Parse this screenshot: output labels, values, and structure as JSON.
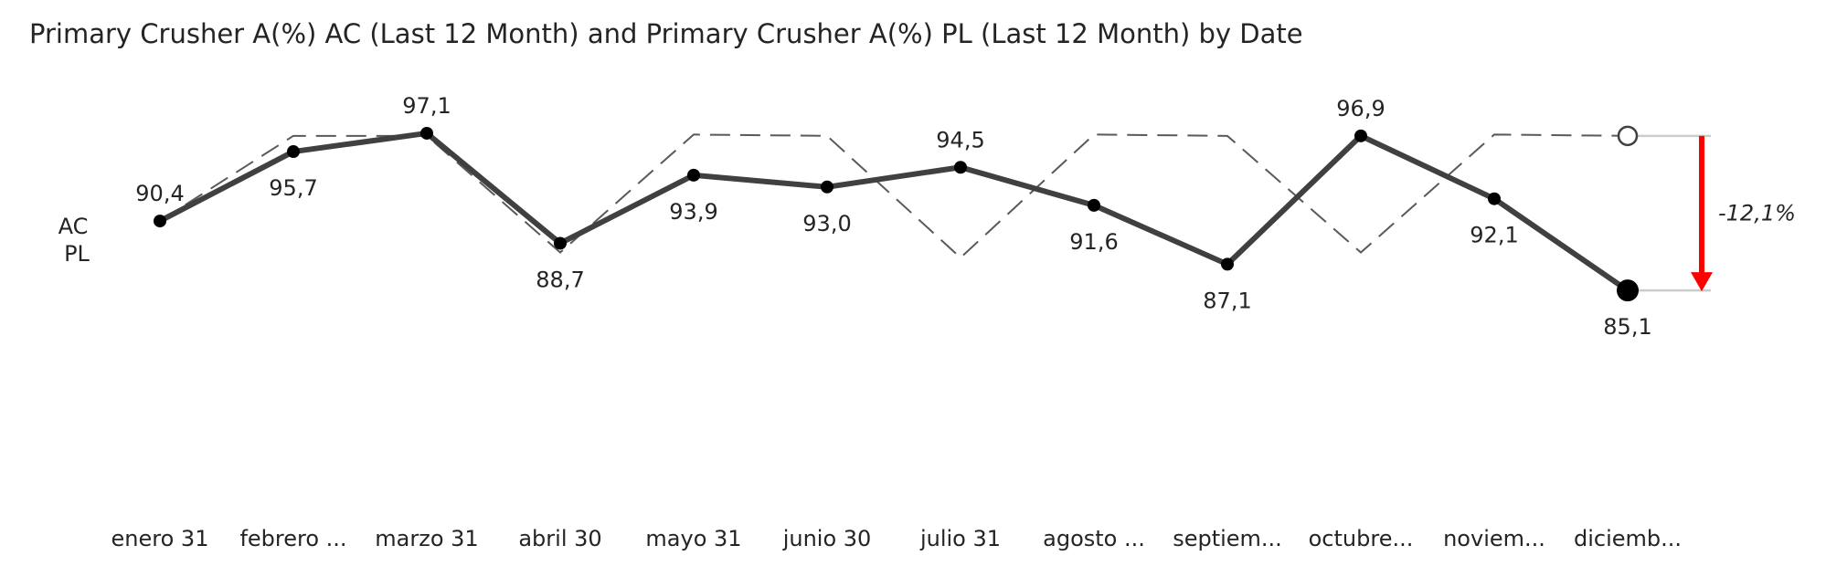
{
  "title": "Primary Crusher A(%) AC (Last 12 Month) and Primary Crusher A(%) PL (Last 12 Month) by Date",
  "legend": [
    "AC",
    "PL"
  ],
  "colors": {
    "ac": "#404040",
    "pl": "#595959",
    "variance": "#ff0000",
    "connector": "#cccccc"
  },
  "chart_data": {
    "type": "line",
    "categories": [
      "enero 31",
      "febrero ...",
      "marzo 31",
      "abril 30",
      "mayo 31",
      "junio 30",
      "julio 31",
      "agosto ...",
      "septiem...",
      "octubre...",
      "noviem...",
      "diciemb..."
    ],
    "series": [
      {
        "name": "AC",
        "style": "solid",
        "values": [
          90.4,
          95.7,
          97.1,
          88.7,
          93.9,
          93.0,
          94.5,
          91.6,
          87.1,
          96.9,
          92.1,
          85.1
        ]
      },
      {
        "name": "PL",
        "style": "dashed",
        "values": [
          null,
          96.9,
          96.9,
          88.0,
          97.0,
          96.9,
          87.6,
          97.0,
          96.9,
          88.0,
          97.0,
          96.9
        ]
      }
    ],
    "data_labels": [
      "90,4",
      "95,7",
      "97,1",
      "88,7",
      "93,9",
      "93,0",
      "94,5",
      "91,6",
      "87,1",
      "96,9",
      "92,1",
      "85,1"
    ],
    "label_position": [
      "above",
      "below",
      "above",
      "below",
      "below",
      "below",
      "above",
      "below",
      "below",
      "above",
      "below",
      "below"
    ],
    "variance_label": "-12,1%",
    "ylim": [
      78,
      101
    ],
    "grid": false
  }
}
